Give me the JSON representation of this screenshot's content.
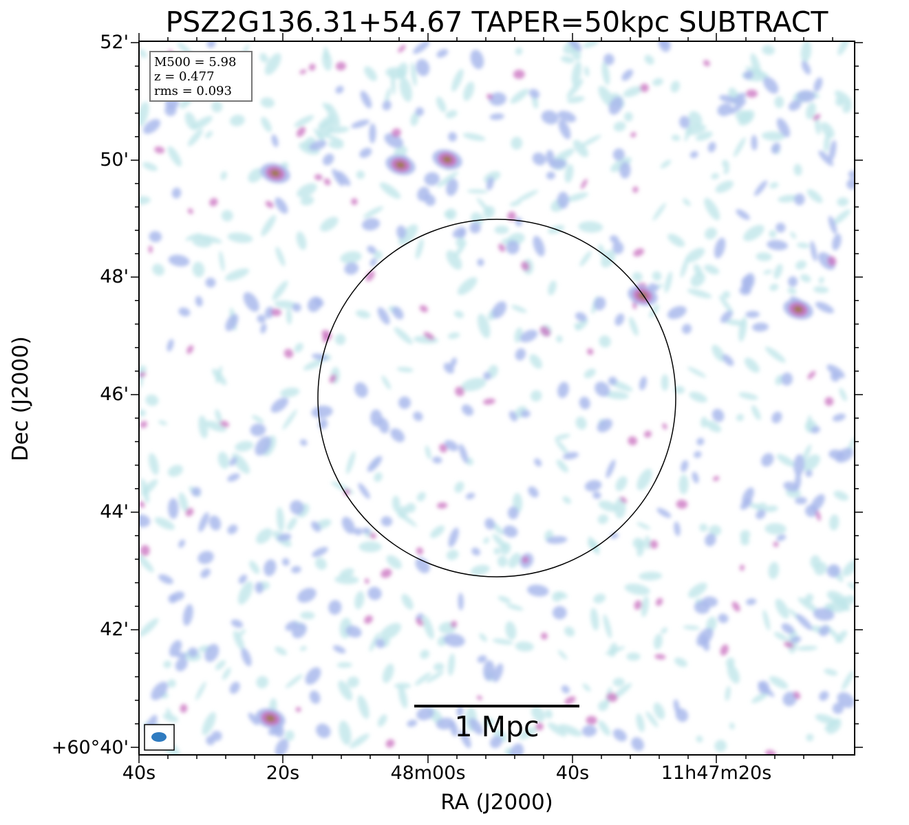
{
  "title": "PSZ2G136.31+54.67 TAPER=50kpc SUBTRACT",
  "axes": {
    "xlabel": "RA (J2000)",
    "ylabel": "Dec (J2000)",
    "xticks": [
      "40s",
      "20s",
      "48m00s",
      "40s",
      "11h47m20s"
    ],
    "yticks": [
      "52'",
      "50'",
      "48'",
      "46'",
      "44'",
      "42'",
      "+60°40'"
    ]
  },
  "info": {
    "m500": "M500 = 5.98",
    "z": "z = 0.477",
    "rms": "rms = 0.093"
  },
  "scalebar": {
    "label": "1 Mpc"
  },
  "colors": {
    "low": "#bfe6ea",
    "mid": "#a9b8ec",
    "high": "#c86fbf",
    "peak": "#9a7a3a",
    "beam": "#2f7bc0",
    "axes": "#000000"
  },
  "chart_data": {
    "type": "heatmap",
    "title": "PSZ2G136.31+54.67 TAPER=50kpc SUBTRACT",
    "xlabel": "RA (J2000)",
    "ylabel": "Dec (J2000)",
    "x_tick_labels": [
      "40s",
      "20s",
      "48m00s",
      "40s",
      "11h47m20s"
    ],
    "y_tick_labels": [
      "52'",
      "50'",
      "48'",
      "46'",
      "44'",
      "42'",
      "+60°40'"
    ],
    "annotations": [
      "M500 = 5.98",
      "z = 0.477",
      "rms = 0.093",
      "1 Mpc"
    ],
    "colormap": "light cyan → lavender → magenta → dark olive peaks",
    "grid": false
  }
}
